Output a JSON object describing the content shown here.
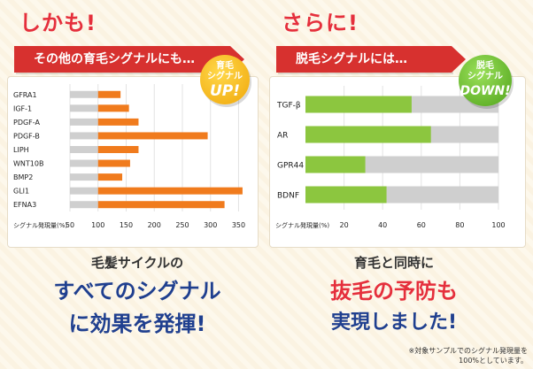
{
  "left": {
    "heading": "しかも!",
    "ribbon": "その他の育毛シグナルにも…",
    "badge": {
      "top": "育毛",
      "mid": "シグナル",
      "big": "UP!"
    },
    "msg_line1": "毛髪サイクルの",
    "msg_line2": "すべてのシグナル",
    "msg_line3": "に効果を発揮!"
  },
  "right": {
    "heading": "さらに!",
    "ribbon": "脱毛シグナルには…",
    "badge": {
      "top": "脱毛",
      "mid": "シグナル",
      "big": "DOWN!"
    },
    "msg_line1": "育毛と同時に",
    "msg_line2": "抜毛の予防も",
    "msg_line3": "実現しました!"
  },
  "footnote_line1": "※対象サンプルでのシグナル発現量を",
  "footnote_line2": "100%としています。",
  "colors": {
    "orange": "#f07b1d",
    "gray": "#cfcfcf",
    "green": "#8cc63f",
    "red": "#e52f3c",
    "navy": "#1f3f8f"
  },
  "chart_data": [
    {
      "type": "bar",
      "orientation": "horizontal",
      "categories": [
        "GFRA1",
        "IGF-1",
        "PDGF-A",
        "PDGF-B",
        "LIPH",
        "WNT10B",
        "BMP2",
        "GLI1",
        "EFNA3"
      ],
      "baseline": 100,
      "values": [
        140,
        155,
        172,
        295,
        172,
        157,
        143,
        357,
        325
      ],
      "xlabel": "シグナル発現量(%)",
      "xticks": [
        50,
        100,
        150,
        200,
        250,
        300,
        350
      ],
      "xlim": [
        50,
        365
      ],
      "grid": true
    },
    {
      "type": "bar",
      "orientation": "horizontal",
      "stacked_on_full": 100,
      "categories": [
        "TGF-β",
        "AR",
        "GPR44",
        "BDNF"
      ],
      "values": [
        55,
        65,
        31,
        42
      ],
      "xlabel": "シグナル発現量(%)",
      "xticks": [
        20,
        40,
        60,
        80,
        100
      ],
      "xlim": [
        0,
        100
      ],
      "grid": true
    }
  ]
}
